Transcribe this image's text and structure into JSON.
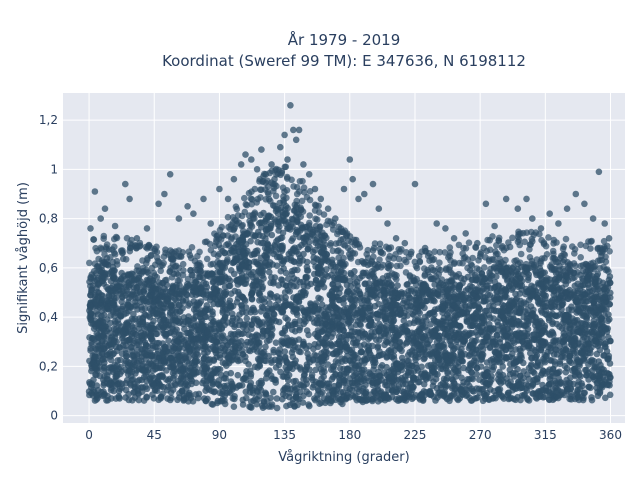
{
  "chart_data": {
    "type": "scatter",
    "title_lines": [
      "År 1979 - 2019",
      "Koordinat (Sweref 99 TM): E 347636, N 6198112"
    ],
    "xlabel": "Vågriktning (grader)",
    "ylabel": "Signifikant våghöjd (m)",
    "xlim": [
      -18,
      370
    ],
    "ylim": [
      -0.03,
      1.31
    ],
    "x_ticks": [
      0,
      45,
      90,
      135,
      180,
      225,
      270,
      315,
      360
    ],
    "x_tick_labels": [
      "0",
      "45",
      "90",
      "135",
      "180",
      "225",
      "270",
      "315",
      "360"
    ],
    "y_ticks": [
      0,
      0.2,
      0.4,
      0.6,
      0.8,
      1,
      1.2
    ],
    "y_tick_labels": [
      "0",
      "0,2",
      "0,4",
      "0,6",
      "0,8",
      "1",
      "1,2"
    ],
    "grid": true,
    "marker_color": "#2e4f68",
    "plot_background": "#e5e8f0",
    "envelope": {
      "direction": [
        0,
        15,
        30,
        45,
        60,
        75,
        90,
        105,
        120,
        135,
        150,
        165,
        180,
        195,
        210,
        225,
        240,
        255,
        270,
        285,
        300,
        315,
        330,
        345,
        360
      ],
      "dense_upper": [
        0.58,
        0.6,
        0.58,
        0.55,
        0.53,
        0.56,
        0.62,
        0.74,
        0.84,
        0.88,
        0.8,
        0.66,
        0.6,
        0.57,
        0.55,
        0.53,
        0.54,
        0.56,
        0.58,
        0.6,
        0.61,
        0.6,
        0.58,
        0.58,
        0.57
      ],
      "dense_lower": [
        0.06,
        0.06,
        0.06,
        0.06,
        0.06,
        0.05,
        0.04,
        0.03,
        0.03,
        0.03,
        0.03,
        0.04,
        0.05,
        0.05,
        0.06,
        0.06,
        0.06,
        0.06,
        0.06,
        0.06,
        0.06,
        0.06,
        0.06,
        0.06,
        0.07
      ]
    },
    "outliers": [
      {
        "x": 1,
        "y": 0.76
      },
      {
        "x": 4,
        "y": 0.91
      },
      {
        "x": 8,
        "y": 0.8
      },
      {
        "x": 11,
        "y": 0.84
      },
      {
        "x": 18,
        "y": 0.77
      },
      {
        "x": 25,
        "y": 0.94
      },
      {
        "x": 28,
        "y": 0.88
      },
      {
        "x": 33,
        "y": 0.72
      },
      {
        "x": 40,
        "y": 0.76
      },
      {
        "x": 48,
        "y": 0.86
      },
      {
        "x": 52,
        "y": 0.9
      },
      {
        "x": 56,
        "y": 0.98
      },
      {
        "x": 62,
        "y": 0.8
      },
      {
        "x": 68,
        "y": 0.85
      },
      {
        "x": 72,
        "y": 0.82
      },
      {
        "x": 79,
        "y": 0.88
      },
      {
        "x": 84,
        "y": 0.78
      },
      {
        "x": 90,
        "y": 0.92
      },
      {
        "x": 96,
        "y": 0.88
      },
      {
        "x": 100,
        "y": 0.96
      },
      {
        "x": 105,
        "y": 1.02
      },
      {
        "x": 108,
        "y": 1.06
      },
      {
        "x": 112,
        "y": 1.04
      },
      {
        "x": 116,
        "y": 1.0
      },
      {
        "x": 119,
        "y": 1.08
      },
      {
        "x": 122,
        "y": 0.98
      },
      {
        "x": 126,
        "y": 1.02
      },
      {
        "x": 128,
        "y": 0.96
      },
      {
        "x": 132,
        "y": 1.09
      },
      {
        "x": 135,
        "y": 1.14
      },
      {
        "x": 137,
        "y": 1.04
      },
      {
        "x": 139,
        "y": 1.26
      },
      {
        "x": 141,
        "y": 1.16
      },
      {
        "x": 143,
        "y": 1.12
      },
      {
        "x": 145,
        "y": 1.16
      },
      {
        "x": 148,
        "y": 1.02
      },
      {
        "x": 152,
        "y": 0.98
      },
      {
        "x": 156,
        "y": 0.92
      },
      {
        "x": 160,
        "y": 0.88
      },
      {
        "x": 165,
        "y": 0.84
      },
      {
        "x": 170,
        "y": 0.8
      },
      {
        "x": 176,
        "y": 0.92
      },
      {
        "x": 180,
        "y": 1.04
      },
      {
        "x": 182,
        "y": 0.96
      },
      {
        "x": 186,
        "y": 0.88
      },
      {
        "x": 190,
        "y": 0.9
      },
      {
        "x": 196,
        "y": 0.94
      },
      {
        "x": 200,
        "y": 0.84
      },
      {
        "x": 206,
        "y": 0.78
      },
      {
        "x": 212,
        "y": 0.72
      },
      {
        "x": 218,
        "y": 0.7
      },
      {
        "x": 225,
        "y": 0.94
      },
      {
        "x": 232,
        "y": 0.68
      },
      {
        "x": 240,
        "y": 0.78
      },
      {
        "x": 246,
        "y": 0.76
      },
      {
        "x": 252,
        "y": 0.72
      },
      {
        "x": 260,
        "y": 0.74
      },
      {
        "x": 268,
        "y": 0.7
      },
      {
        "x": 274,
        "y": 0.86
      },
      {
        "x": 280,
        "y": 0.77
      },
      {
        "x": 288,
        "y": 0.88
      },
      {
        "x": 296,
        "y": 0.84
      },
      {
        "x": 302,
        "y": 0.88
      },
      {
        "x": 306,
        "y": 0.8
      },
      {
        "x": 312,
        "y": 0.76
      },
      {
        "x": 318,
        "y": 0.82
      },
      {
        "x": 324,
        "y": 0.78
      },
      {
        "x": 330,
        "y": 0.84
      },
      {
        "x": 336,
        "y": 0.9
      },
      {
        "x": 342,
        "y": 0.86
      },
      {
        "x": 348,
        "y": 0.8
      },
      {
        "x": 352,
        "y": 0.99
      },
      {
        "x": 356,
        "y": 0.78
      },
      {
        "x": 359,
        "y": 0.72
      }
    ]
  }
}
